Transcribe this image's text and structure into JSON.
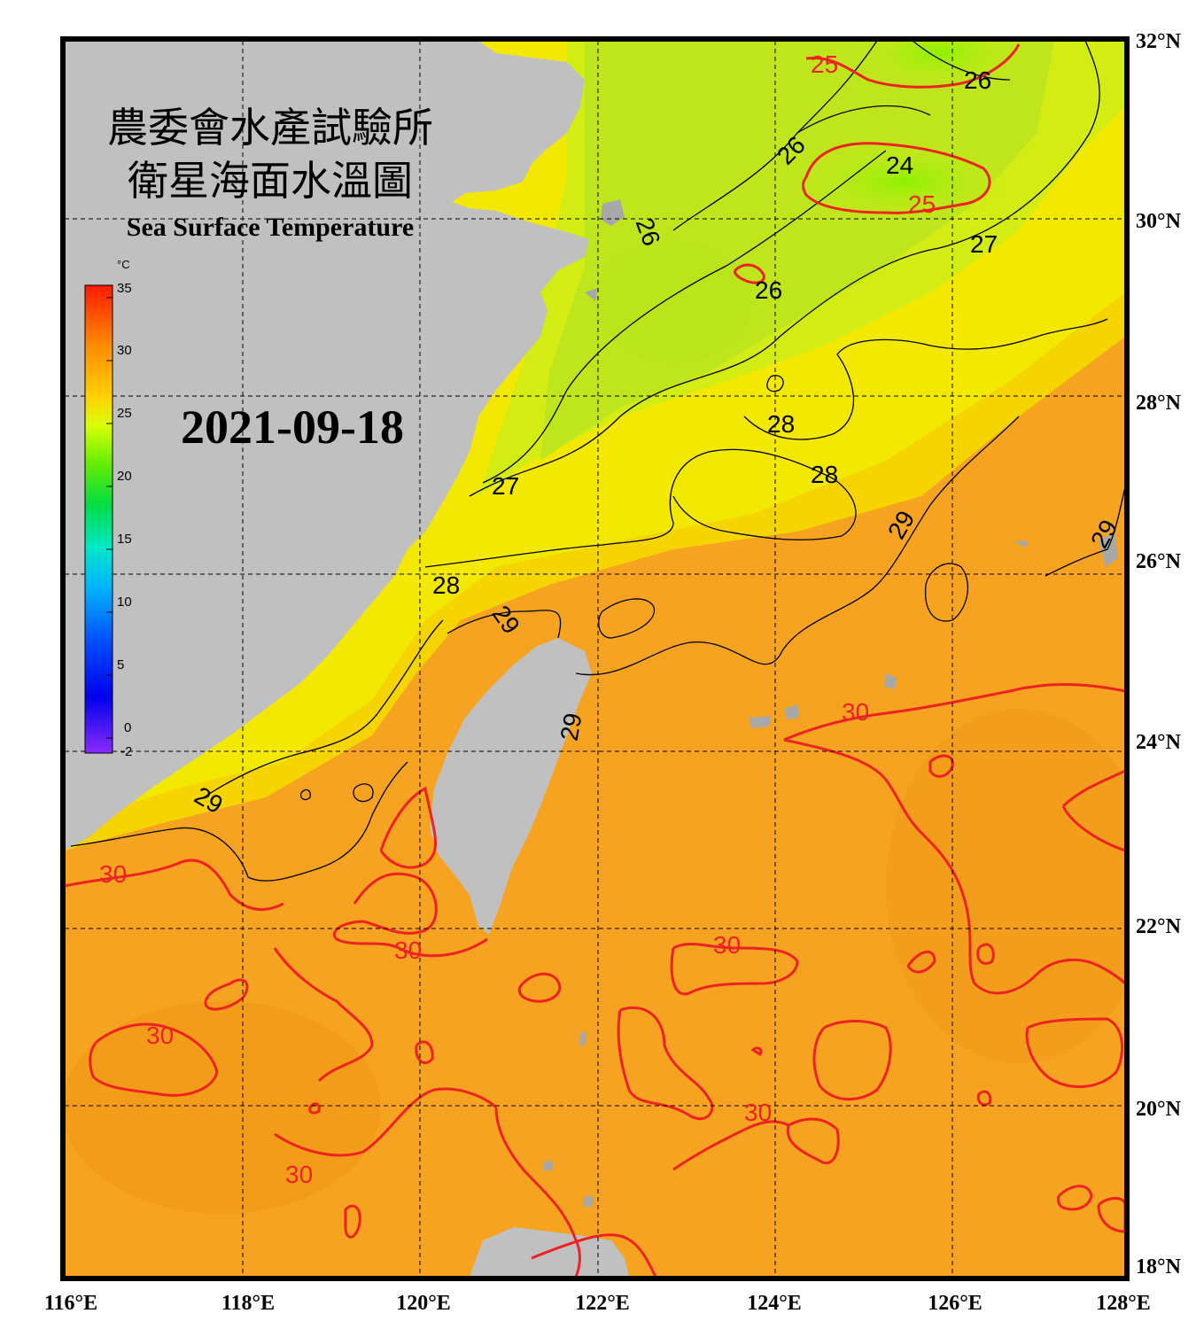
{
  "title_zh_line1": "農委會水產試驗所",
  "title_zh_line2": "衛星海面水溫圖",
  "title_en": "Sea Surface Temperature",
  "date": "2021-09-18",
  "colorbar": {
    "unit": "°C",
    "ticks": [
      "35",
      "30",
      "25",
      "20",
      "15",
      "10",
      "5",
      "0",
      "-2"
    ],
    "colors": [
      "#ff2a00",
      "#ff8c00",
      "#ffd200",
      "#d8ff00",
      "#7cff00",
      "#00dd44",
      "#00e0c0",
      "#00b8ff",
      "#0060ff",
      "#0000ff",
      "#7a00ff"
    ]
  },
  "lon_labels": [
    "116°E",
    "118°E",
    "120°E",
    "122°E",
    "124°E",
    "126°E",
    "128°E"
  ],
  "lat_labels": [
    "32°N",
    "30°N",
    "28°N",
    "26°N",
    "24°N",
    "22°N",
    "20°N",
    "18°N"
  ],
  "contour_labels": {
    "c24": "24",
    "c25": "25",
    "c26": "26",
    "c27": "27",
    "c28": "28",
    "c29": "29",
    "c30": "30"
  },
  "colors": {
    "land": "#c0c0c0",
    "warm_sea": "#f7a51e",
    "mid_sea": "#f5e400",
    "cool_sea": "#c6ec1a",
    "cold_sea": "#8ef000",
    "contour_red": "#ee2222",
    "contour_black": "#000000"
  }
}
